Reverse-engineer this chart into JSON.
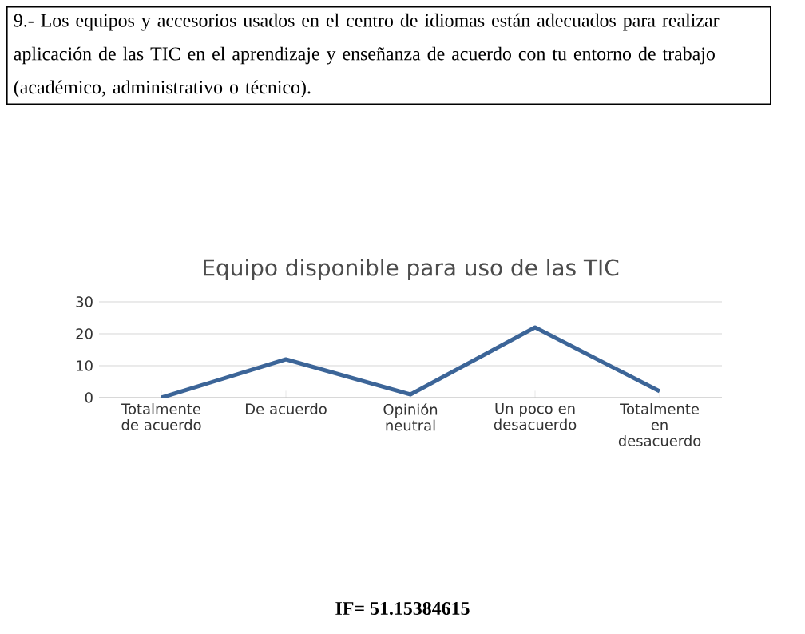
{
  "chart_data": {
    "type": "line",
    "title": "Equipo disponible para uso de las TIC",
    "categories": [
      "Totalmente de acuerdo",
      "De acuerdo",
      "Opinión neutral",
      "Un poco en desacuerdo",
      "Totalmente en desacuerdo"
    ],
    "values": [
      0,
      12,
      1,
      22,
      2
    ],
    "color": "#3c6598",
    "ylim": [
      0,
      30
    ],
    "yticks": [
      0,
      10,
      20,
      30
    ],
    "grid": "y",
    "marker": "none",
    "line_style": "solid",
    "annotations": [
      "9.- Los equipos y accesorios usados en el centro de idiomas están adecuados para realizar aplicación de las TIC en el aprendizaje y enseñanza de acuerdo con tu entorno de trabajo (académico, administrativo o técnico).",
      "IF= 51.15384615"
    ]
  }
}
